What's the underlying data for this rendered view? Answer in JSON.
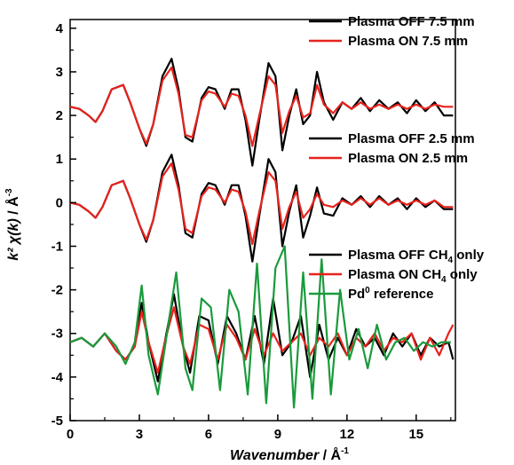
{
  "chart_data": {
    "type": "line",
    "xlabel": "Wavenumber",
    "xlabel_unit": " / Å",
    "xlabel_unit_sup": "-1",
    "ylabel": "k² χ(k)",
    "ylabel_unit": " / Å",
    "ylabel_unit_sup": "-3",
    "xlim": [
      0,
      16.7
    ],
    "ylim": [
      -5,
      4.2
    ],
    "x_ticks": [
      0,
      3,
      6,
      9,
      12,
      15
    ],
    "y_ticks": [
      -5,
      -4,
      -3,
      -2,
      -1,
      0,
      1,
      2,
      3,
      4
    ],
    "grid": false,
    "colors": {
      "black": "#000000",
      "red": "#e8221c",
      "green": "#1a9a3c"
    },
    "groups": [
      {
        "offset": 2.2,
        "legend": [
          {
            "name": "Plasma OFF 7.5 mm",
            "color": "#000000"
          },
          {
            "name": "Plasma ON 7.5 mm",
            "color": "#e8221c"
          }
        ],
        "series": [
          {
            "name": "Plasma OFF 7.5 mm",
            "color": "#000000",
            "x": [
              0,
              0.4,
              0.8,
              1.1,
              1.4,
              1.8,
              2.3,
              2.6,
              3.0,
              3.3,
              3.6,
              4.0,
              4.4,
              4.7,
              5.0,
              5.3,
              5.7,
              6.0,
              6.3,
              6.7,
              7.0,
              7.3,
              7.6,
              7.9,
              8.2,
              8.6,
              8.9,
              9.2,
              9.5,
              9.8,
              10.1,
              10.4,
              10.7,
              11.0,
              11.4,
              11.8,
              12.2,
              12.6,
              13.0,
              13.4,
              13.8,
              14.2,
              14.6,
              15.0,
              15.4,
              15.8,
              16.2,
              16.6
            ],
            "y": [
              2.2,
              2.15,
              2.0,
              1.85,
              2.1,
              2.6,
              2.7,
              2.3,
              1.7,
              1.3,
              1.8,
              2.9,
              3.3,
              2.6,
              1.5,
              1.4,
              2.4,
              2.65,
              2.6,
              2.15,
              2.6,
              2.6,
              1.9,
              0.85,
              1.9,
              3.2,
              2.9,
              1.2,
              2.0,
              2.6,
              1.8,
              2.0,
              3.0,
              2.3,
              1.9,
              2.3,
              2.15,
              2.4,
              2.1,
              2.35,
              2.15,
              2.3,
              2.05,
              2.35,
              2.1,
              2.3,
              2.0,
              2.0
            ]
          },
          {
            "name": "Plasma ON 7.5 mm",
            "color": "#e8221c",
            "x": [
              0,
              0.4,
              0.8,
              1.1,
              1.4,
              1.8,
              2.3,
              2.6,
              3.0,
              3.3,
              3.6,
              4.0,
              4.4,
              4.7,
              5.0,
              5.3,
              5.7,
              6.0,
              6.3,
              6.7,
              7.0,
              7.3,
              7.6,
              7.9,
              8.2,
              8.6,
              8.9,
              9.2,
              9.5,
              9.8,
              10.1,
              10.4,
              10.7,
              11.0,
              11.4,
              11.8,
              12.2,
              12.6,
              13.0,
              13.4,
              13.8,
              14.2,
              14.6,
              15.0,
              15.4,
              15.8,
              16.2,
              16.6
            ],
            "y": [
              2.2,
              2.15,
              2.0,
              1.85,
              2.1,
              2.6,
              2.7,
              2.3,
              1.7,
              1.35,
              1.8,
              2.8,
              3.1,
              2.5,
              1.55,
              1.5,
              2.35,
              2.55,
              2.5,
              2.2,
              2.5,
              2.45,
              2.0,
              1.3,
              2.0,
              2.9,
              2.7,
              1.6,
              2.1,
              2.45,
              1.95,
              2.05,
              2.7,
              2.25,
              2.05,
              2.3,
              2.15,
              2.3,
              2.15,
              2.25,
              2.15,
              2.25,
              2.15,
              2.25,
              2.15,
              2.25,
              2.2,
              2.2
            ]
          }
        ]
      },
      {
        "offset": 0.0,
        "legend": [
          {
            "name": "Plasma OFF 2.5 mm",
            "color": "#000000"
          },
          {
            "name": "Plasma ON 2.5 mm",
            "color": "#e8221c"
          }
        ],
        "series": [
          {
            "name": "Plasma OFF 2.5 mm",
            "color": "#000000",
            "x": [
              0,
              0.4,
              0.8,
              1.1,
              1.4,
              1.8,
              2.3,
              2.6,
              3.0,
              3.3,
              3.6,
              4.0,
              4.4,
              4.7,
              5.0,
              5.3,
              5.7,
              6.0,
              6.3,
              6.7,
              7.0,
              7.3,
              7.6,
              7.9,
              8.2,
              8.6,
              8.9,
              9.2,
              9.5,
              9.8,
              10.1,
              10.4,
              10.7,
              11.0,
              11.4,
              11.8,
              12.2,
              12.6,
              13.0,
              13.4,
              13.8,
              14.2,
              14.6,
              15.0,
              15.4,
              15.8,
              16.2,
              16.6
            ],
            "y": [
              0.0,
              -0.05,
              -0.2,
              -0.35,
              -0.1,
              0.4,
              0.5,
              0.1,
              -0.5,
              -0.9,
              -0.4,
              0.7,
              1.1,
              0.4,
              -0.7,
              -0.8,
              0.2,
              0.45,
              0.4,
              -0.05,
              0.4,
              0.4,
              -0.3,
              -1.35,
              -0.3,
              1.0,
              0.7,
              -1.0,
              -0.2,
              0.4,
              -0.8,
              -0.3,
              0.35,
              -0.25,
              -0.3,
              0.1,
              -0.05,
              0.15,
              -0.1,
              0.15,
              -0.05,
              0.1,
              -0.15,
              0.1,
              -0.1,
              0.05,
              -0.15,
              -0.15
            ]
          },
          {
            "name": "Plasma ON 2.5 mm",
            "color": "#e8221c",
            "x": [
              0,
              0.4,
              0.8,
              1.1,
              1.4,
              1.8,
              2.3,
              2.6,
              3.0,
              3.3,
              3.6,
              4.0,
              4.4,
              4.7,
              5.0,
              5.3,
              5.7,
              6.0,
              6.3,
              6.7,
              7.0,
              7.3,
              7.6,
              7.9,
              8.2,
              8.6,
              8.9,
              9.2,
              9.5,
              9.8,
              10.1,
              10.4,
              10.7,
              11.0,
              11.4,
              11.8,
              12.2,
              12.6,
              13.0,
              13.4,
              13.8,
              14.2,
              14.6,
              15.0,
              15.4,
              15.8,
              16.2,
              16.6
            ],
            "y": [
              0.0,
              -0.05,
              -0.2,
              -0.35,
              -0.1,
              0.4,
              0.5,
              0.1,
              -0.5,
              -0.85,
              -0.4,
              0.6,
              0.9,
              0.3,
              -0.6,
              -0.7,
              0.15,
              0.35,
              0.3,
              0.0,
              0.3,
              0.25,
              -0.2,
              -0.95,
              -0.2,
              0.7,
              0.5,
              -0.6,
              -0.1,
              0.25,
              -0.35,
              -0.15,
              0.2,
              -0.05,
              -0.1,
              0.05,
              -0.05,
              0.1,
              -0.05,
              0.1,
              -0.05,
              0.05,
              -0.05,
              0.05,
              -0.05,
              0.05,
              -0.1,
              -0.1
            ]
          }
        ]
      },
      {
        "offset": -3.2,
        "legend": [
          {
            "name": "Plasma OFF CH",
            "sub": "4",
            "suffix": " only",
            "color": "#000000"
          },
          {
            "name": "Plasma ON CH",
            "sub": "4",
            "suffix": " only",
            "color": "#e8221c"
          },
          {
            "name": "Pd",
            "sup": "0",
            "suffix": " reference",
            "color": "#1a9a3c"
          }
        ],
        "series": [
          {
            "name": "Plasma OFF CH4 only",
            "color": "#000000",
            "x": [
              0,
              0.5,
              1.0,
              1.5,
              2.0,
              2.4,
              2.8,
              3.1,
              3.4,
              3.8,
              4.1,
              4.5,
              4.9,
              5.2,
              5.6,
              6.0,
              6.4,
              6.8,
              7.2,
              7.6,
              8.0,
              8.4,
              8.8,
              9.2,
              9.6,
              10.0,
              10.4,
              10.8,
              11.2,
              11.6,
              12.0,
              12.4,
              12.8,
              13.2,
              13.6,
              14.0,
              14.4,
              14.8,
              15.2,
              15.6,
              16.0,
              16.4,
              16.6
            ],
            "y": [
              -3.2,
              -3.1,
              -3.3,
              -3.0,
              -3.4,
              -3.6,
              -3.3,
              -2.3,
              -3.2,
              -4.1,
              -3.2,
              -2.1,
              -3.3,
              -3.9,
              -2.6,
              -2.7,
              -3.7,
              -2.6,
              -3.0,
              -3.6,
              -2.6,
              -3.7,
              -2.2,
              -3.5,
              -3.2,
              -2.6,
              -4.0,
              -2.8,
              -3.6,
              -3.1,
              -3.5,
              -2.9,
              -3.3,
              -3.1,
              -3.5,
              -3.0,
              -3.3,
              -3.0,
              -3.5,
              -3.1,
              -3.3,
              -3.2,
              -3.6
            ]
          },
          {
            "name": "Plasma ON CH4 only",
            "color": "#e8221c",
            "x": [
              0,
              0.5,
              1.0,
              1.5,
              2.0,
              2.4,
              2.8,
              3.1,
              3.4,
              3.8,
              4.1,
              4.5,
              4.9,
              5.2,
              5.6,
              6.0,
              6.4,
              6.8,
              7.2,
              7.6,
              8.0,
              8.4,
              8.8,
              9.2,
              9.6,
              10.0,
              10.4,
              10.8,
              11.2,
              11.6,
              12.0,
              12.4,
              12.8,
              13.2,
              13.6,
              14.0,
              14.4,
              14.8,
              15.2,
              15.6,
              16.0,
              16.4,
              16.6
            ],
            "y": [
              -3.2,
              -3.1,
              -3.3,
              -3.0,
              -3.4,
              -3.6,
              -3.3,
              -2.5,
              -3.2,
              -3.9,
              -3.2,
              -2.4,
              -3.3,
              -3.7,
              -2.8,
              -2.9,
              -3.6,
              -2.8,
              -3.1,
              -3.6,
              -2.9,
              -3.5,
              -3.0,
              -3.4,
              -3.2,
              -3.0,
              -3.5,
              -3.1,
              -3.3,
              -3.0,
              -3.5,
              -3.1,
              -3.3,
              -3.0,
              -3.4,
              -3.1,
              -3.2,
              -3.0,
              -3.6,
              -3.1,
              -3.5,
              -3.0,
              -2.8
            ]
          },
          {
            "name": "Pd0 reference",
            "color": "#1a9a3c",
            "x": [
              0,
              0.5,
              1.0,
              1.5,
              2.0,
              2.4,
              2.8,
              3.1,
              3.4,
              3.8,
              4.2,
              4.6,
              5.0,
              5.3,
              5.7,
              6.1,
              6.5,
              6.9,
              7.3,
              7.7,
              8.1,
              8.5,
              8.9,
              9.3,
              9.7,
              10.1,
              10.5,
              10.9,
              11.3,
              11.7,
              12.1,
              12.5,
              12.9,
              13.3,
              13.7,
              14.1,
              14.5,
              14.9,
              15.3,
              15.7,
              16.1,
              16.5
            ],
            "y": [
              -3.2,
              -3.1,
              -3.3,
              -3.0,
              -3.3,
              -3.7,
              -3.2,
              -1.9,
              -3.5,
              -4.4,
              -3.0,
              -1.6,
              -3.8,
              -4.3,
              -2.2,
              -2.4,
              -4.3,
              -2.0,
              -2.5,
              -4.4,
              -1.4,
              -4.6,
              -1.5,
              -1.0,
              -4.7,
              -1.6,
              -4.5,
              -1.3,
              -4.4,
              -2.0,
              -3.6,
              -2.9,
              -3.8,
              -2.8,
              -3.6,
              -3.2,
              -3.1,
              -3.4,
              -3.2,
              -3.3,
              -3.2,
              -3.2
            ]
          }
        ]
      }
    ]
  }
}
